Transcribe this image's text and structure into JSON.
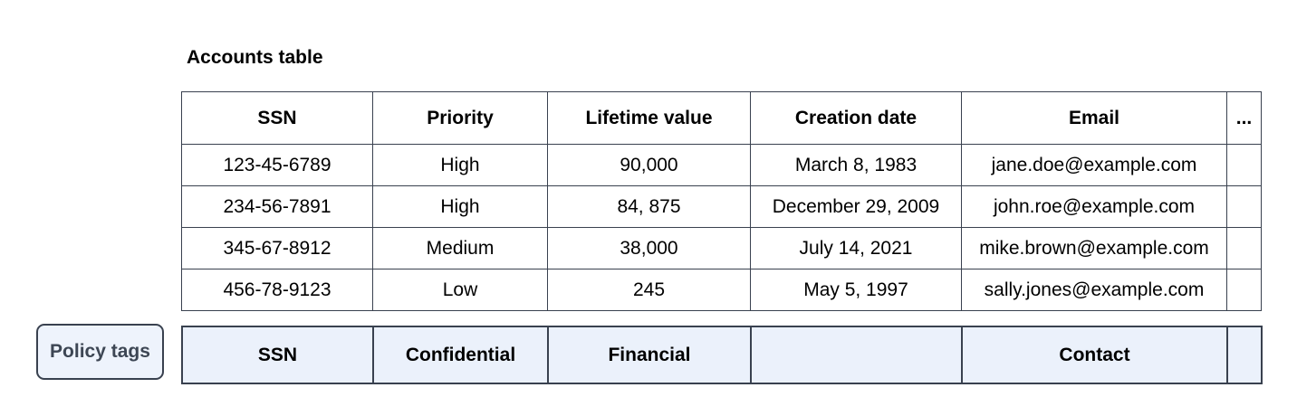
{
  "title": "Accounts table",
  "table": {
    "columns": [
      "SSN",
      "Priority",
      "Lifetime value",
      "Creation date",
      "Email",
      "..."
    ],
    "rows": [
      [
        "123-45-6789",
        "High",
        "90,000",
        "March 8, 1983",
        "jane.doe@example.com",
        ""
      ],
      [
        "234-56-7891",
        "High",
        "84, 875",
        "December 29, 2009",
        "john.roe@example.com",
        ""
      ],
      [
        "345-67-8912",
        "Medium",
        "38,000",
        "July 14, 2021",
        "mike.brown@example.com",
        ""
      ],
      [
        "456-78-9123",
        "Low",
        "245",
        "May 5, 1997",
        "sally.jones@example.com",
        ""
      ]
    ]
  },
  "policy": {
    "label": "Policy tags",
    "tags": [
      "SSN",
      "Confidential",
      "Financial",
      "",
      "Contact",
      ""
    ]
  },
  "colors": {
    "border": "#39414f",
    "policy_row_fill": "#ebf1fb",
    "policy_button_fill": "#eef3fc",
    "policy_button_text": "#3d4654",
    "table_text": "#000000"
  }
}
